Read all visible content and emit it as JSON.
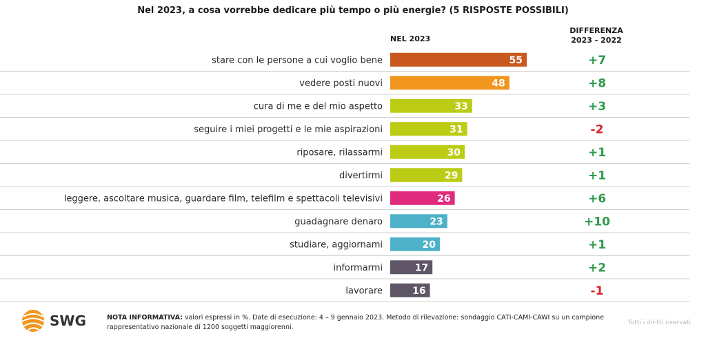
{
  "chart_data": {
    "type": "bar",
    "orientation": "horizontal",
    "title": "Nel 2023, a cosa vorrebbe dedicare più tempo o più energie? (5 RISPOSTE POSSIBILI)",
    "value_column_header": "NEL 2023",
    "diff_column_header_line1": "DIFFERENZA",
    "diff_column_header_line2": "2023 - 2022",
    "categories": [
      "stare con le persone a cui voglio bene",
      "vedere posti nuovi",
      "cura di me e del mio aspetto",
      "seguire i miei progetti e le mie aspirazioni",
      "riposare, rilassarmi",
      "divertirmi",
      "leggere, ascoltare musica, guardare film, telefilm e spettacoli televisivi",
      "guadagnare denaro",
      "studiare, aggiornami",
      "informarmi",
      "lavorare"
    ],
    "values": [
      55,
      48,
      33,
      31,
      30,
      29,
      26,
      23,
      20,
      17,
      16
    ],
    "differences": [
      "+7",
      "+8",
      "+3",
      "-2",
      "+1",
      "+1",
      "+6",
      "+10",
      "+1",
      "+2",
      "-1"
    ],
    "bar_colors": [
      "#c9581e",
      "#f0961e",
      "#bccc14",
      "#bccc14",
      "#bccc14",
      "#bccc14",
      "#e02a7e",
      "#4fb1c8",
      "#4fb1c8",
      "#5e5566",
      "#5e5566"
    ],
    "positive_color": "#2e9a4a",
    "negative_color": "#d8232a",
    "unit": "%"
  },
  "footer": {
    "note_label": "NOTA INFORMATIVA:",
    "note_text": " valori espressi in %. Date di esecuzione: 4 – 9 gennaio 2023. Metodo di rilevazione: sondaggio CATI-CAMI-CAWI su un campione rappresentativo nazionale di 1200 soggetti maggiorenni.",
    "rights": "Tutti i diritti riservati"
  },
  "logo": {
    "text": "SWG",
    "icon": "globe-icon",
    "color": "#f0961e"
  }
}
